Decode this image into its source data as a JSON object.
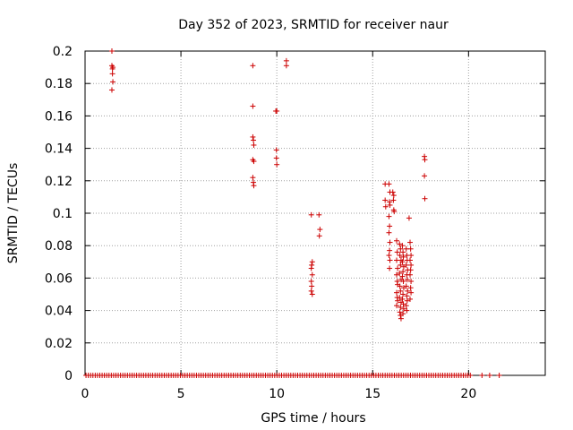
{
  "chart_data": {
    "type": "scatter",
    "title": "Day 352 of 2023, SRMTID for receiver naur",
    "xlabel": "GPS time / hours",
    "ylabel": "SRMTID / TECUs",
    "xlim": [
      0,
      24
    ],
    "ylim": [
      0,
      0.2
    ],
    "xticks": [
      0,
      5,
      10,
      15,
      20
    ],
    "yticks": [
      0,
      0.02,
      0.04,
      0.06,
      0.08,
      0.1,
      0.12,
      0.14,
      0.16,
      0.18,
      0.2
    ],
    "grid": true,
    "marker": "+",
    "color": "#cc0000",
    "series": [
      {
        "name": "SRMTID",
        "points": [
          [
            1.4,
            0.2
          ],
          [
            1.4,
            0.191
          ],
          [
            1.43,
            0.189
          ],
          [
            1.45,
            0.19
          ],
          [
            1.43,
            0.186
          ],
          [
            1.45,
            0.181
          ],
          [
            1.4,
            0.176
          ],
          [
            8.75,
            0.191
          ],
          [
            8.75,
            0.166
          ],
          [
            8.75,
            0.147
          ],
          [
            8.78,
            0.145
          ],
          [
            8.8,
            0.142
          ],
          [
            8.75,
            0.133
          ],
          [
            8.8,
            0.132
          ],
          [
            8.75,
            0.122
          ],
          [
            8.78,
            0.119
          ],
          [
            8.8,
            0.117
          ],
          [
            9.95,
            0.163
          ],
          [
            10.0,
            0.163
          ],
          [
            9.98,
            0.139
          ],
          [
            9.98,
            0.134
          ],
          [
            10.0,
            0.13
          ],
          [
            10.5,
            0.194
          ],
          [
            10.5,
            0.191
          ],
          [
            11.8,
            0.099
          ],
          [
            11.85,
            0.07
          ],
          [
            11.82,
            0.068
          ],
          [
            11.8,
            0.066
          ],
          [
            11.85,
            0.062
          ],
          [
            11.8,
            0.058
          ],
          [
            11.82,
            0.055
          ],
          [
            11.8,
            0.052
          ],
          [
            11.85,
            0.05
          ],
          [
            12.2,
            0.099
          ],
          [
            12.25,
            0.09
          ],
          [
            12.22,
            0.086
          ],
          [
            15.65,
            0.118
          ],
          [
            15.65,
            0.108
          ],
          [
            15.68,
            0.104
          ],
          [
            15.85,
            0.118
          ],
          [
            15.9,
            0.113
          ],
          [
            15.88,
            0.107
          ],
          [
            15.9,
            0.105
          ],
          [
            15.85,
            0.098
          ],
          [
            15.88,
            0.092
          ],
          [
            15.85,
            0.088
          ],
          [
            15.9,
            0.082
          ],
          [
            15.88,
            0.077
          ],
          [
            15.85,
            0.074
          ],
          [
            15.9,
            0.071
          ],
          [
            15.88,
            0.066
          ],
          [
            16.05,
            0.113
          ],
          [
            16.1,
            0.111
          ],
          [
            16.08,
            0.108
          ],
          [
            16.1,
            0.102
          ],
          [
            16.12,
            0.101
          ],
          [
            16.25,
            0.083
          ],
          [
            16.28,
            0.076
          ],
          [
            16.25,
            0.071
          ],
          [
            16.3,
            0.066
          ],
          [
            16.25,
            0.062
          ],
          [
            16.28,
            0.058
          ],
          [
            16.3,
            0.056
          ],
          [
            16.25,
            0.051
          ],
          [
            16.28,
            0.048
          ],
          [
            16.3,
            0.046
          ],
          [
            16.25,
            0.043
          ],
          [
            16.4,
            0.081
          ],
          [
            16.45,
            0.078
          ],
          [
            16.42,
            0.074
          ],
          [
            16.48,
            0.071
          ],
          [
            16.45,
            0.068
          ],
          [
            16.4,
            0.063
          ],
          [
            16.48,
            0.059
          ],
          [
            16.42,
            0.055
          ],
          [
            16.45,
            0.052
          ],
          [
            16.4,
            0.048
          ],
          [
            16.48,
            0.045
          ],
          [
            16.45,
            0.042
          ],
          [
            16.42,
            0.039
          ],
          [
            16.45,
            0.037
          ],
          [
            16.48,
            0.035
          ],
          [
            16.55,
            0.08
          ],
          [
            16.58,
            0.076
          ],
          [
            16.6,
            0.073
          ],
          [
            16.55,
            0.07
          ],
          [
            16.62,
            0.067
          ],
          [
            16.58,
            0.064
          ],
          [
            16.55,
            0.061
          ],
          [
            16.6,
            0.058
          ],
          [
            16.62,
            0.054
          ],
          [
            16.58,
            0.05
          ],
          [
            16.55,
            0.047
          ],
          [
            16.6,
            0.044
          ],
          [
            16.62,
            0.041
          ],
          [
            16.58,
            0.038
          ],
          [
            16.75,
            0.078
          ],
          [
            16.78,
            0.074
          ],
          [
            16.8,
            0.071
          ],
          [
            16.75,
            0.068
          ],
          [
            16.82,
            0.065
          ],
          [
            16.78,
            0.062
          ],
          [
            16.8,
            0.059
          ],
          [
            16.75,
            0.055
          ],
          [
            16.82,
            0.052
          ],
          [
            16.78,
            0.049
          ],
          [
            16.8,
            0.046
          ],
          [
            16.75,
            0.043
          ],
          [
            16.78,
            0.04
          ],
          [
            16.95,
            0.082
          ],
          [
            16.98,
            0.078
          ],
          [
            17.0,
            0.074
          ],
          [
            16.95,
            0.071
          ],
          [
            17.0,
            0.068
          ],
          [
            16.98,
            0.065
          ],
          [
            16.95,
            0.062
          ],
          [
            17.0,
            0.058
          ],
          [
            16.98,
            0.054
          ],
          [
            17.0,
            0.051
          ],
          [
            16.95,
            0.047
          ],
          [
            16.9,
            0.097
          ],
          [
            17.7,
            0.135
          ],
          [
            17.72,
            0.133
          ],
          [
            17.7,
            0.123
          ],
          [
            17.72,
            0.109
          ]
        ]
      }
    ],
    "zero_band": {
      "y": 0,
      "x_start": 0.05,
      "x_end": 20.2,
      "step": 0.12,
      "extra_x": [
        20.7,
        21.1,
        21.6
      ]
    }
  }
}
